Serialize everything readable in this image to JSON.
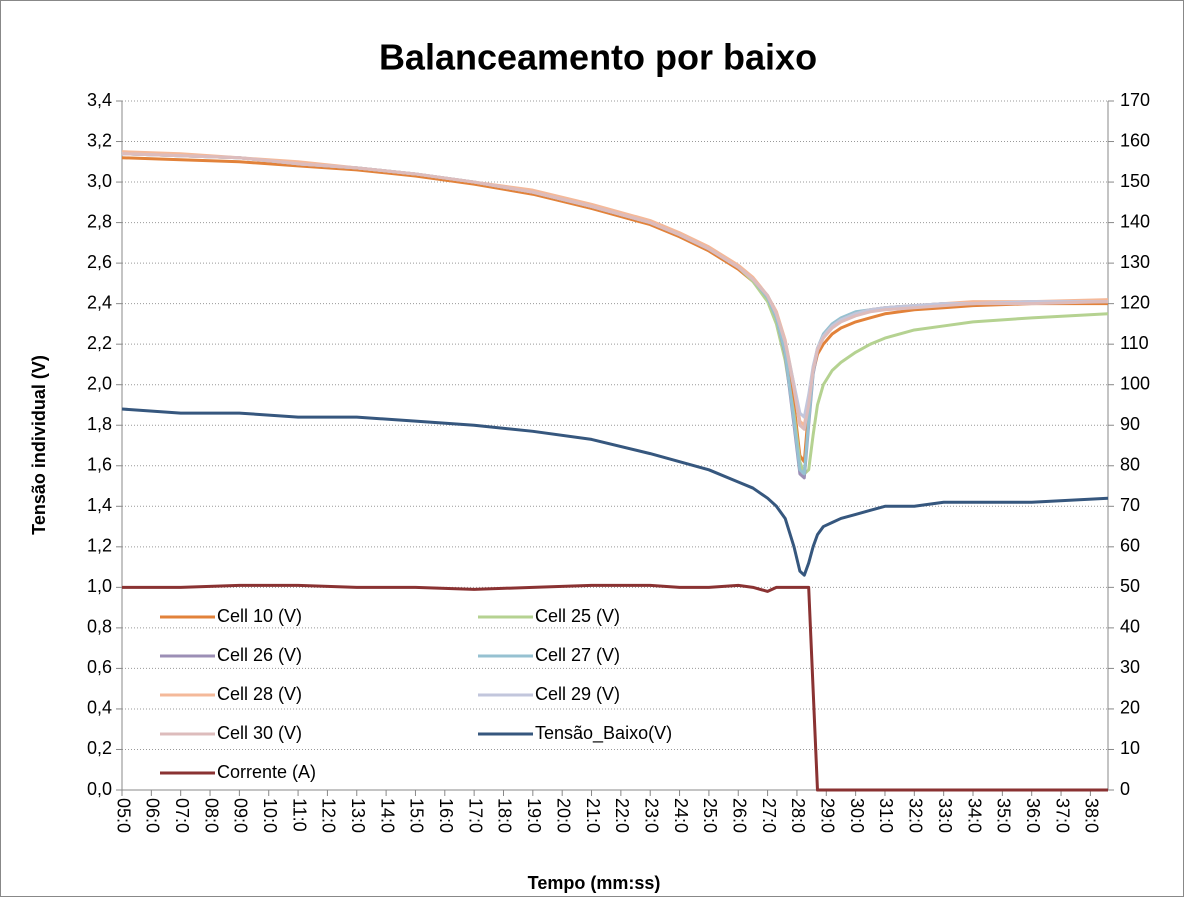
{
  "chart_data": {
    "type": "line",
    "title": "Balanceamento por baixo",
    "x_label": "Tempo (mm:ss)",
    "y_label": "Tensão individual (V)",
    "grid": true,
    "legend": "bottom-left",
    "xlim": [
      5,
      38.6
    ],
    "xticks": [
      {
        "value": 5,
        "label": "05:0"
      },
      {
        "value": 6,
        "label": "06:0"
      },
      {
        "value": 7,
        "label": "07:0"
      },
      {
        "value": 8,
        "label": "08:0"
      },
      {
        "value": 9,
        "label": "09:0"
      },
      {
        "value": 10,
        "label": "10:0"
      },
      {
        "value": 11,
        "label": "11:0"
      },
      {
        "value": 12,
        "label": "12:0"
      },
      {
        "value": 13,
        "label": "13:0"
      },
      {
        "value": 14,
        "label": "14:0"
      },
      {
        "value": 15,
        "label": "15:0"
      },
      {
        "value": 16,
        "label": "16:0"
      },
      {
        "value": 17,
        "label": "17:0"
      },
      {
        "value": 18,
        "label": "18:0"
      },
      {
        "value": 19,
        "label": "19:0"
      },
      {
        "value": 20,
        "label": "20:0"
      },
      {
        "value": 21,
        "label": "21:0"
      },
      {
        "value": 22,
        "label": "22:0"
      },
      {
        "value": 23,
        "label": "23:0"
      },
      {
        "value": 24,
        "label": "24:0"
      },
      {
        "value": 25,
        "label": "25:0"
      },
      {
        "value": 26,
        "label": "26:0"
      },
      {
        "value": 27,
        "label": "27:0"
      },
      {
        "value": 28,
        "label": "28:0"
      },
      {
        "value": 29,
        "label": "29:0"
      },
      {
        "value": 30,
        "label": "30:0"
      },
      {
        "value": 31,
        "label": "31:0"
      },
      {
        "value": 32,
        "label": "32:0"
      },
      {
        "value": 33,
        "label": "33:0"
      },
      {
        "value": 34,
        "label": "34:0"
      },
      {
        "value": 35,
        "label": "35:0"
      },
      {
        "value": 36,
        "label": "36:0"
      },
      {
        "value": 37,
        "label": "37:0"
      },
      {
        "value": 38,
        "label": "38:0"
      }
    ],
    "ylim": [
      0,
      3.4
    ],
    "yticks": [
      {
        "value": 0,
        "label": "0,0"
      },
      {
        "value": 0.2,
        "label": "0,2"
      },
      {
        "value": 0.4,
        "label": "0,4"
      },
      {
        "value": 0.6,
        "label": "0,6"
      },
      {
        "value": 0.8,
        "label": "0,8"
      },
      {
        "value": 1.0,
        "label": "1,0"
      },
      {
        "value": 1.2,
        "label": "1,2"
      },
      {
        "value": 1.4,
        "label": "1,4"
      },
      {
        "value": 1.6,
        "label": "1,6"
      },
      {
        "value": 1.8,
        "label": "1,8"
      },
      {
        "value": 2.0,
        "label": "2,0"
      },
      {
        "value": 2.2,
        "label": "2,2"
      },
      {
        "value": 2.4,
        "label": "2,4"
      },
      {
        "value": 2.6,
        "label": "2,6"
      },
      {
        "value": 2.8,
        "label": "2,8"
      },
      {
        "value": 3.0,
        "label": "3,0"
      },
      {
        "value": 3.2,
        "label": "3,2"
      },
      {
        "value": 3.4,
        "label": "3,4"
      }
    ],
    "y2lim": [
      0,
      170
    ],
    "y2ticks": [
      0,
      10,
      20,
      30,
      40,
      50,
      60,
      70,
      80,
      90,
      100,
      110,
      120,
      130,
      140,
      150,
      160,
      170
    ],
    "x": [
      5,
      7,
      9,
      11,
      13,
      15,
      17,
      19,
      21,
      23,
      24,
      25,
      26,
      26.5,
      27,
      27.3,
      27.6,
      27.9,
      28.1,
      28.25,
      28.4,
      28.55,
      28.7,
      28.9,
      29.2,
      29.5,
      30,
      30.5,
      31,
      32,
      33,
      34,
      36,
      38.6
    ],
    "series": [
      {
        "name": "Cell 10 (V)",
        "color": "#e2823a",
        "values": [
          3.12,
          3.11,
          3.1,
          3.08,
          3.06,
          3.03,
          2.99,
          2.94,
          2.87,
          2.79,
          2.73,
          2.66,
          2.57,
          2.51,
          2.42,
          2.33,
          2.18,
          1.9,
          1.65,
          1.62,
          1.88,
          2.06,
          2.15,
          2.2,
          2.25,
          2.28,
          2.31,
          2.33,
          2.35,
          2.37,
          2.38,
          2.39,
          2.4,
          2.4
        ]
      },
      {
        "name": "Cell 25 (V)",
        "color": "#b5d291",
        "values": [
          3.14,
          3.13,
          3.12,
          3.09,
          3.07,
          3.04,
          3.0,
          2.95,
          2.88,
          2.8,
          2.74,
          2.67,
          2.58,
          2.51,
          2.41,
          2.3,
          2.12,
          1.85,
          1.62,
          1.56,
          1.58,
          1.75,
          1.9,
          2.0,
          2.07,
          2.11,
          2.16,
          2.2,
          2.23,
          2.27,
          2.29,
          2.31,
          2.33,
          2.35
        ]
      },
      {
        "name": "Cell 26 (V)",
        "color": "#9c8fb6",
        "values": [
          3.14,
          3.13,
          3.12,
          3.09,
          3.07,
          3.04,
          3.0,
          2.95,
          2.88,
          2.8,
          2.74,
          2.67,
          2.58,
          2.52,
          2.43,
          2.33,
          2.15,
          1.8,
          1.56,
          1.54,
          1.8,
          2.05,
          2.17,
          2.24,
          2.29,
          2.32,
          2.35,
          2.37,
          2.38,
          2.39,
          2.4,
          2.4,
          2.41,
          2.41
        ]
      },
      {
        "name": "Cell 27 (V)",
        "color": "#96c1d1",
        "values": [
          3.14,
          3.13,
          3.12,
          3.09,
          3.07,
          3.04,
          3.0,
          2.95,
          2.88,
          2.8,
          2.74,
          2.67,
          2.58,
          2.52,
          2.43,
          2.33,
          2.16,
          1.82,
          1.58,
          1.56,
          1.82,
          2.06,
          2.18,
          2.25,
          2.3,
          2.33,
          2.36,
          2.37,
          2.38,
          2.39,
          2.4,
          2.4,
          2.41,
          2.41
        ]
      },
      {
        "name": "Cell 28 (V)",
        "color": "#f4b99a",
        "values": [
          3.15,
          3.14,
          3.12,
          3.1,
          3.07,
          3.04,
          3.0,
          2.96,
          2.89,
          2.81,
          2.75,
          2.68,
          2.59,
          2.53,
          2.44,
          2.36,
          2.22,
          2.0,
          1.82,
          1.8,
          1.92,
          2.08,
          2.18,
          2.24,
          2.29,
          2.32,
          2.35,
          2.37,
          2.38,
          2.39,
          2.4,
          2.41,
          2.41,
          2.42
        ]
      },
      {
        "name": "Cell 29 (V)",
        "color": "#c2c6dc",
        "values": [
          3.14,
          3.13,
          3.12,
          3.09,
          3.07,
          3.04,
          3.0,
          2.95,
          2.88,
          2.8,
          2.74,
          2.67,
          2.58,
          2.52,
          2.44,
          2.35,
          2.21,
          2.0,
          1.86,
          1.84,
          1.95,
          2.09,
          2.18,
          2.24,
          2.29,
          2.32,
          2.35,
          2.37,
          2.38,
          2.39,
          2.4,
          2.4,
          2.41,
          2.41
        ]
      },
      {
        "name": "Cell 30 (V)",
        "color": "#ddbcbc",
        "values": [
          3.14,
          3.13,
          3.12,
          3.09,
          3.07,
          3.04,
          3.0,
          2.95,
          2.88,
          2.8,
          2.74,
          2.67,
          2.58,
          2.52,
          2.44,
          2.35,
          2.21,
          1.98,
          1.8,
          1.78,
          1.9,
          2.07,
          2.17,
          2.23,
          2.28,
          2.31,
          2.34,
          2.36,
          2.37,
          2.38,
          2.39,
          2.4,
          2.4,
          2.41
        ]
      },
      {
        "name": "Tensão_Baixo(V)",
        "color": "#36577e",
        "axis": "y2",
        "values": [
          94,
          93,
          93,
          92,
          92,
          91,
          90,
          88.5,
          86.5,
          83,
          81,
          79,
          76,
          74.5,
          72,
          70,
          67,
          60,
          54,
          53,
          56,
          60,
          63,
          65,
          66,
          67,
          68,
          69,
          70,
          70,
          71,
          71,
          71,
          72
        ]
      },
      {
        "name": "Corrente (A)",
        "color": "#8a3232",
        "axis": "y2",
        "values": [
          50,
          50,
          50.5,
          50.5,
          50,
          50,
          49.5,
          50,
          50.5,
          50.5,
          50,
          50,
          50.5,
          50,
          49,
          50,
          50,
          50,
          50,
          50,
          50,
          25,
          0,
          0,
          0,
          0,
          0,
          0,
          0,
          0,
          0,
          0,
          0,
          0
        ]
      }
    ]
  }
}
